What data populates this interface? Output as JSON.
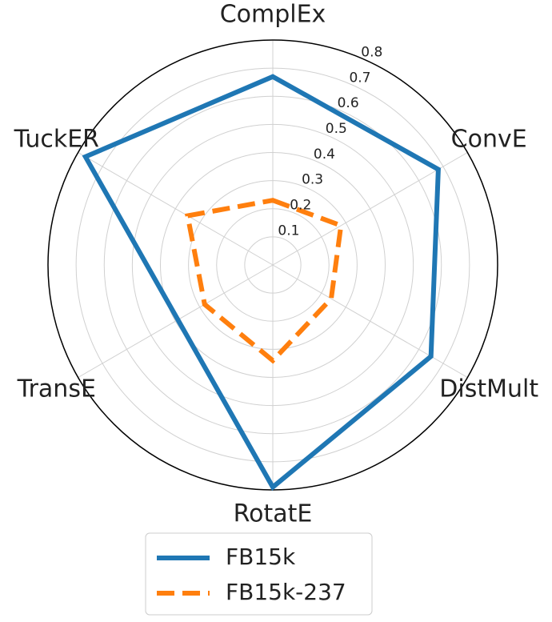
{
  "chart_data": {
    "type": "radar",
    "categories": [
      "ComplEx",
      "ConvE",
      "DistMult",
      "RotatE",
      "TransE",
      "TuckER"
    ],
    "series": [
      {
        "name": "FB15k",
        "color": "#1f77b4",
        "line_style": "solid",
        "values": [
          0.67,
          0.68,
          0.65,
          0.79,
          0.39,
          0.77
        ]
      },
      {
        "name": "FB15k-237",
        "color": "#ff7f0e",
        "line_style": "dashed",
        "values": [
          0.23,
          0.28,
          0.24,
          0.34,
          0.28,
          0.35
        ]
      }
    ],
    "ylim": [
      0,
      0.8
    ],
    "yticks": [
      0.1,
      0.2,
      0.3,
      0.4,
      0.5,
      0.6,
      0.7,
      0.8
    ],
    "grid": true,
    "legend": "bottom"
  }
}
